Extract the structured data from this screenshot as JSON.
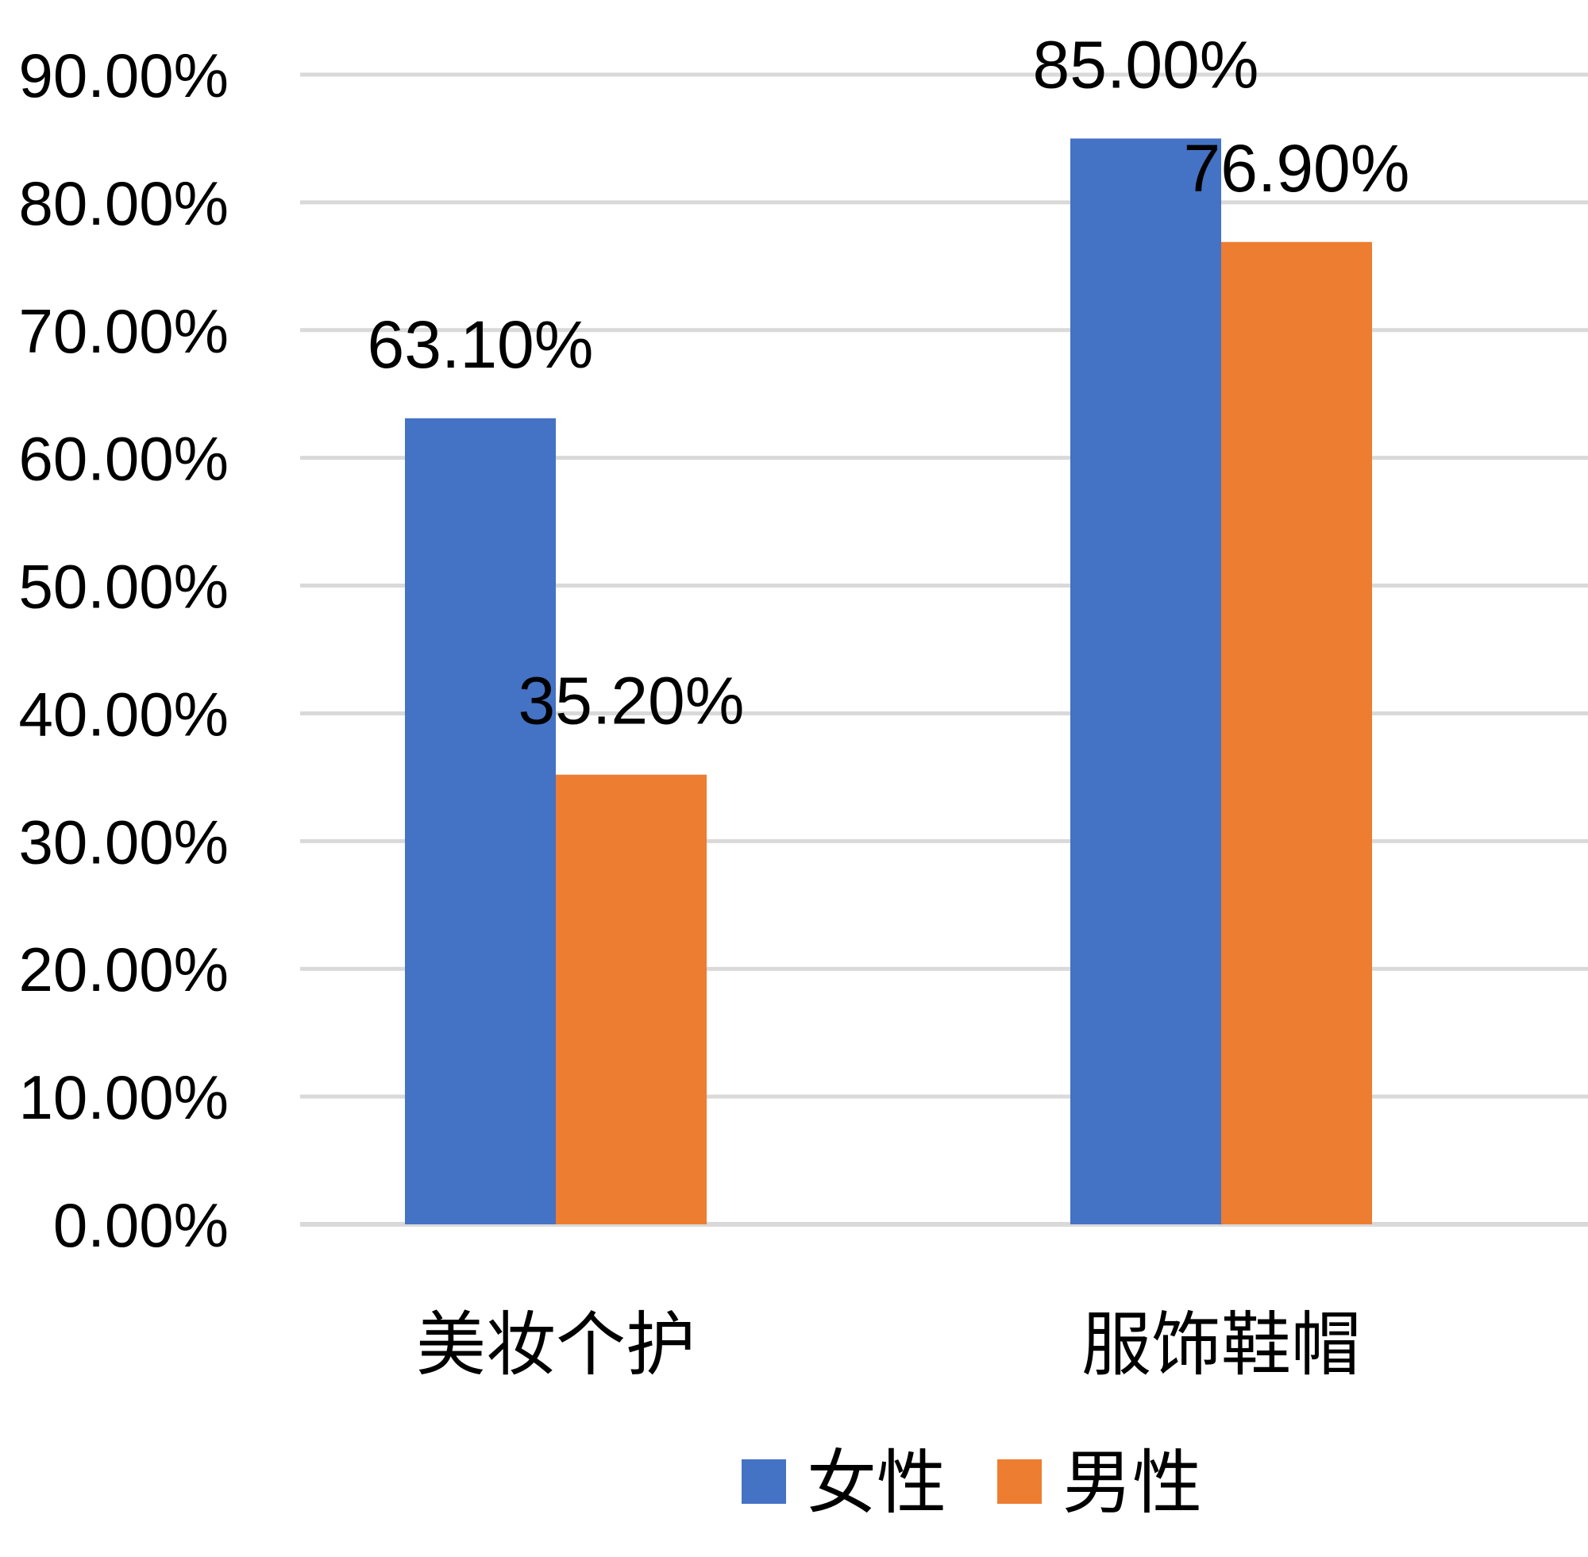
{
  "chart_data": {
    "type": "bar",
    "categories": [
      "美妆个护",
      "服饰鞋帽"
    ],
    "series": [
      {
        "name": "女性",
        "values": [
          63.1,
          85.0
        ],
        "color": "#4472C4",
        "labels": [
          "63.10%",
          "85.00%"
        ]
      },
      {
        "name": "男性",
        "values": [
          35.2,
          76.9
        ],
        "color": "#ED7D31",
        "labels": [
          "35.20%",
          "76.90%"
        ]
      }
    ],
    "ylim": [
      0,
      90
    ],
    "yticks": [
      0,
      10,
      20,
      30,
      40,
      50,
      60,
      70,
      80,
      90
    ],
    "ytick_labels": [
      "0.00%",
      "10.00%",
      "20.00%",
      "30.00%",
      "40.00%",
      "50.00%",
      "60.00%",
      "70.00%",
      "80.00%",
      "90.00%"
    ],
    "grid": true,
    "gridline_color": "#D9D9D9",
    "legend_position": "bottom"
  }
}
